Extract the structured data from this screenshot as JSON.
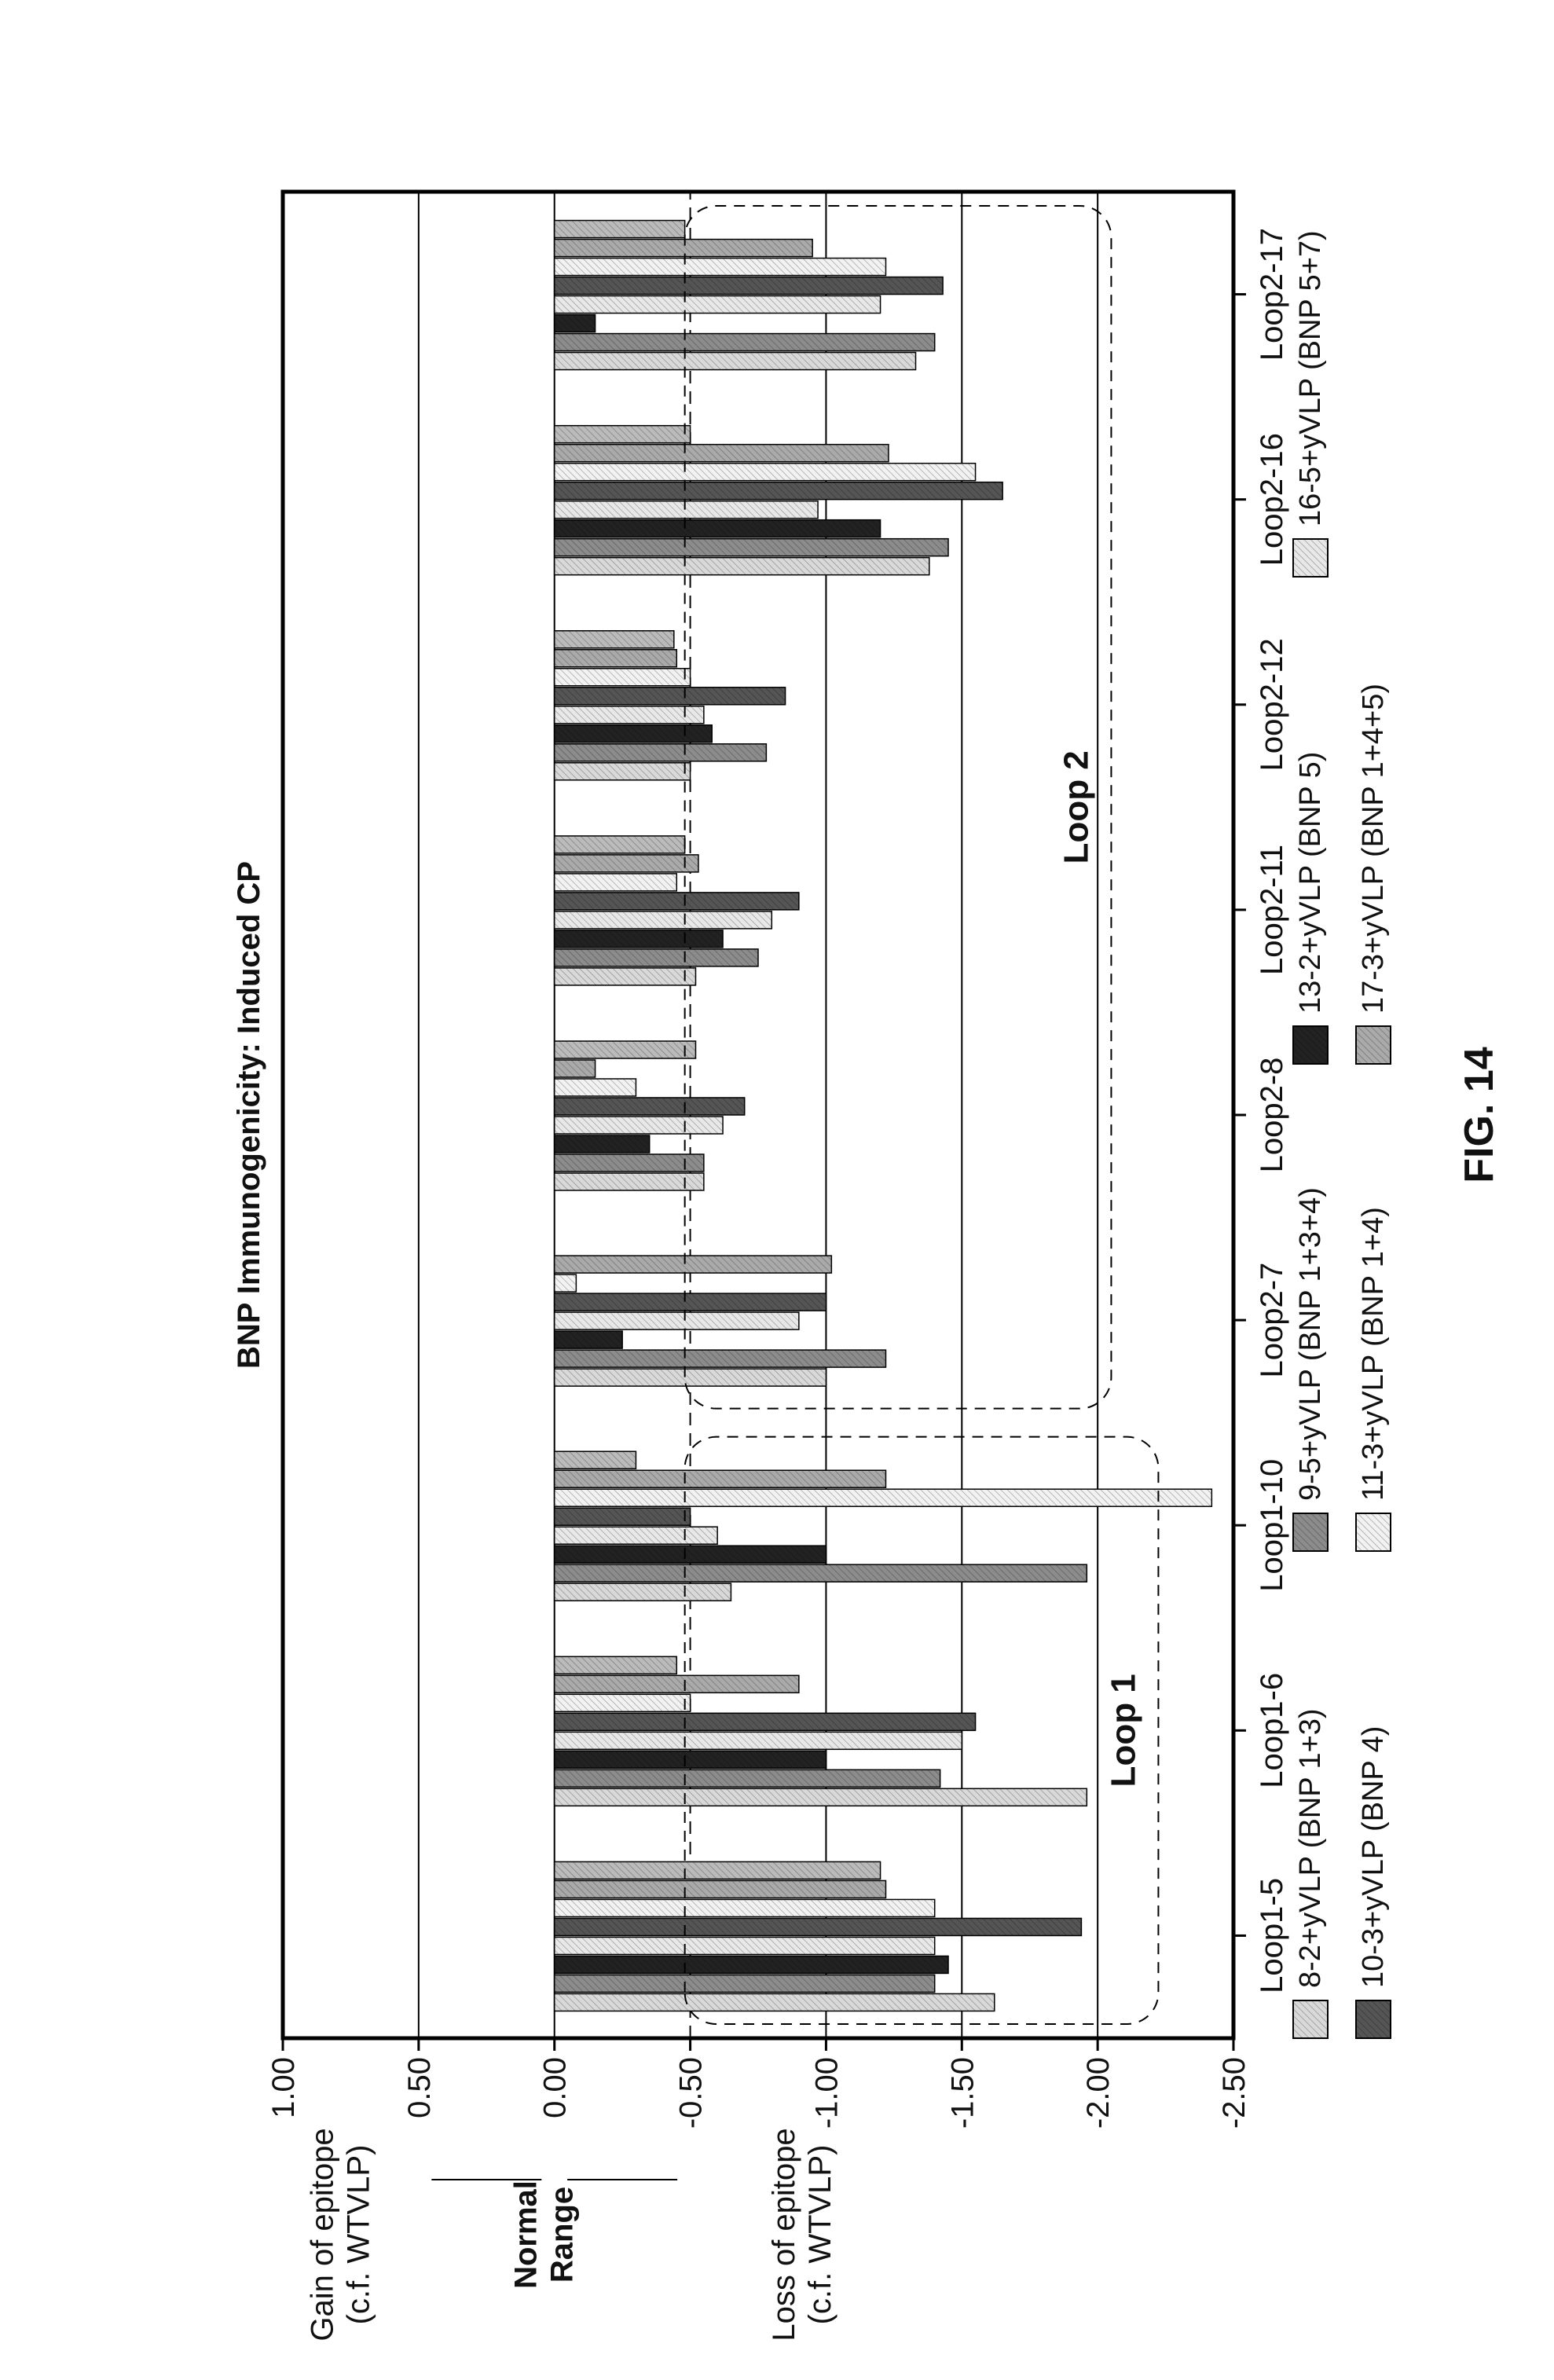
{
  "chart_data": {
    "type": "bar",
    "title": "BNP Immunogenicity: Induced CP",
    "figure_label": "FIG. 14",
    "ylim": [
      -2.5,
      1.0
    ],
    "yticks": [
      "1.00",
      "0.50",
      "0.00",
      "-0.50",
      "-1.00",
      "-1.50",
      "-2.00",
      "-2.50"
    ],
    "ylabel_gain": [
      "Gain of epitope",
      "(c.f. WTVLP)"
    ],
    "ylabel_normal": [
      "Normal",
      "Range"
    ],
    "ylabel_loss": [
      "Loss of epitope",
      "(c.f. WTVLP)"
    ],
    "categories": [
      "Loop1-5",
      "Loop1-6",
      "Loop1-10",
      "Loop2-7",
      "Loop2-8",
      "Loop2-11",
      "Loop2-12",
      "Loop2-16",
      "Loop2-17"
    ],
    "groups": [
      {
        "label": "Loop 1",
        "categories": [
          "Loop1-5",
          "Loop1-6",
          "Loop1-10"
        ]
      },
      {
        "label": "Loop 2",
        "categories": [
          "Loop2-7",
          "Loop2-8",
          "Loop2-11",
          "Loop2-12",
          "Loop2-16",
          "Loop2-17"
        ]
      }
    ],
    "series": [
      {
        "name": "8-2+yVLP (BNP 1+3)",
        "color": "#d9d9d9",
        "values": [
          -1.62,
          -1.96,
          -0.65,
          -1.0,
          -0.55,
          -0.52,
          -0.5,
          -1.38,
          -1.33
        ]
      },
      {
        "name": "9-5+yVLP (BNP 1+3+4)",
        "color": "#8c8c8c",
        "values": [
          -1.4,
          -1.42,
          -1.96,
          -1.22,
          -0.55,
          -0.75,
          -0.78,
          -1.45,
          -1.4
        ]
      },
      {
        "name": "13-2+yVLP (BNP 5)",
        "color": "#222222",
        "values": [
          -1.45,
          -1.0,
          -1.0,
          -0.25,
          -0.35,
          -0.62,
          -0.58,
          -1.2,
          -0.15
        ]
      },
      {
        "name": "16-5+yVLP (BNP 5+7)",
        "color": "#e8e8e8",
        "values": [
          -1.4,
          -1.5,
          -0.6,
          -0.9,
          -0.62,
          -0.8,
          -0.55,
          -0.97,
          -1.2
        ]
      },
      {
        "name": "10-3+yVLP (BNP 4)",
        "color": "#555555",
        "values": [
          -1.94,
          -1.55,
          -0.5,
          -1.0,
          -0.7,
          -0.9,
          -0.85,
          -1.65,
          -1.43
        ]
      },
      {
        "name": "11-3+yVLP (BNP 1+4)",
        "color": "#f2f2f2",
        "values": [
          -1.4,
          -0.5,
          -2.42,
          -0.08,
          -0.3,
          -0.45,
          -0.5,
          -1.55,
          -1.22
        ]
      },
      {
        "name": "17-3+yVLP (BNP 1+4+5)",
        "color": "#aaaaaa",
        "values": [
          -1.22,
          -0.9,
          -1.22,
          -1.02,
          -0.15,
          -0.53,
          -0.45,
          -1.23,
          -0.95
        ]
      }
    ],
    "extra_bars": [
      {
        "category": "Loop1-5",
        "value": -1.2
      },
      {
        "category": "Loop1-6",
        "value": -0.45
      },
      {
        "category": "Loop1-10",
        "value": -0.3
      },
      {
        "category": "Loop2-8",
        "value": -0.52
      },
      {
        "category": "Loop2-11",
        "value": -0.48
      },
      {
        "category": "Loop2-12",
        "value": -0.44
      },
      {
        "category": "Loop2-16",
        "value": -0.5
      },
      {
        "category": "Loop2-17",
        "value": -0.48
      }
    ],
    "reference_line": -0.5,
    "gridlines": [
      0.5,
      0.0,
      -1.0,
      -1.5,
      -2.0
    ],
    "legend_position": "bottom"
  }
}
